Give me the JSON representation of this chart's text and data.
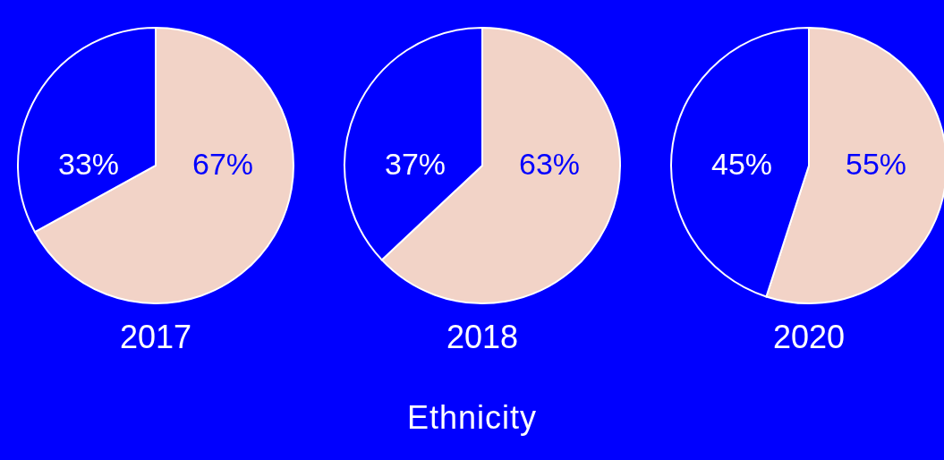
{
  "chart_data": [
    {
      "type": "pie",
      "title": "2017",
      "categories": [
        null,
        null
      ],
      "values": [
        67,
        33
      ],
      "colors": [
        "#f2d3c7",
        "#0000ff"
      ],
      "value_labels": [
        "67%",
        "33%"
      ]
    },
    {
      "type": "pie",
      "title": "2018",
      "categories": [
        null,
        null
      ],
      "values": [
        63,
        37
      ],
      "colors": [
        "#f2d3c7",
        "#0000ff"
      ],
      "value_labels": [
        "63%",
        "37%"
      ],
      "annotations": [
        "Ethnicity"
      ]
    },
    {
      "type": "pie",
      "title": "2020",
      "categories": [
        null,
        null
      ],
      "values": [
        55,
        45
      ],
      "colors": [
        "#f2d3c7",
        "#0000ff"
      ],
      "value_labels": [
        "55%",
        "45%"
      ]
    }
  ]
}
